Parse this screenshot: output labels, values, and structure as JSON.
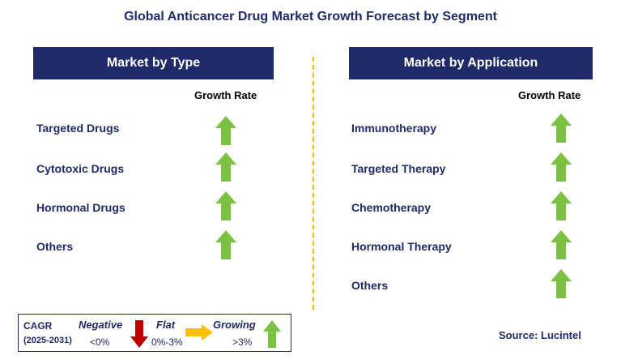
{
  "title": "Global Anticancer Drug Market Growth Forecast by Segment",
  "left_panel": {
    "header": "Market by Type",
    "growth_label": "Growth Rate",
    "items": [
      "Targeted Drugs",
      "Cytotoxic Drugs",
      "Hormonal Drugs",
      "Others"
    ]
  },
  "right_panel": {
    "header": "Market by Application",
    "growth_label": "Growth Rate",
    "items": [
      "Immunotherapy",
      "Targeted Therapy",
      "Chemotherapy",
      "Hormonal Therapy",
      "Others"
    ]
  },
  "legend": {
    "cagr": "CAGR",
    "period": "(2025-2031)",
    "negative_label": "Negative",
    "negative_value": "<0%",
    "flat_label": "Flat",
    "flat_value": "0%-3%",
    "growing_label": "Growing",
    "growing_value": ">3%"
  },
  "source": "Source: Lucintel",
  "colors": {
    "navy": "#1f2a6b",
    "green_arrow": "#7cc242",
    "red_arrow": "#c00000",
    "yellow_arrow": "#ffc000",
    "divider": "#f5b800"
  },
  "icons": {
    "growing": "up-arrow-icon",
    "negative": "down-arrow-icon",
    "flat": "right-arrow-icon"
  }
}
